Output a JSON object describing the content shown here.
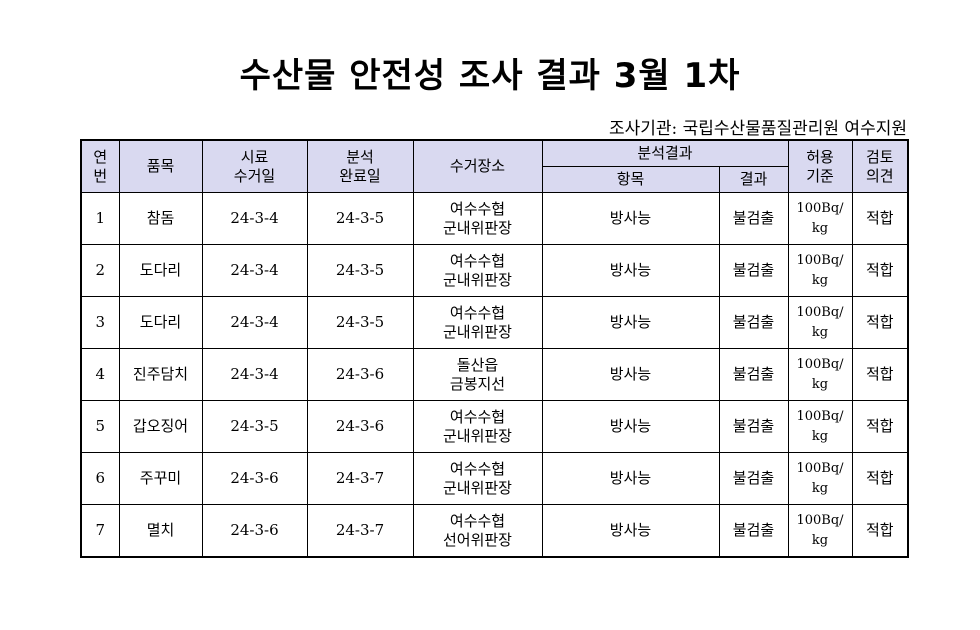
{
  "title": "수산물 안전성 조사 결과 3월 1차",
  "agency": "조사기관: 국립수산물품질관리원 여수지원",
  "headers": {
    "no": "연\n번",
    "item": "품목",
    "collect_date": "시료\n수거일",
    "analysis_date": "분석\n완료일",
    "place": "수거장소",
    "result_group": "분석결과",
    "test": "항목",
    "result": "결과",
    "limit": "허용\n기준",
    "opinion": "검토\n의견"
  },
  "rows": [
    {
      "no": "1",
      "item": "참돔",
      "collect": "24-3-4",
      "done": "24-3-5",
      "place": "여수수협\n군내위판장",
      "test": "방사능",
      "result": "불검출",
      "limit": "100Bq/\nkg",
      "opinion": "적합"
    },
    {
      "no": "2",
      "item": "도다리",
      "collect": "24-3-4",
      "done": "24-3-5",
      "place": "여수수협\n군내위판장",
      "test": "방사능",
      "result": "불검출",
      "limit": "100Bq/\nkg",
      "opinion": "적합"
    },
    {
      "no": "3",
      "item": "도다리",
      "collect": "24-3-4",
      "done": "24-3-5",
      "place": "여수수협\n군내위판장",
      "test": "방사능",
      "result": "불검출",
      "limit": "100Bq/\nkg",
      "opinion": "적합"
    },
    {
      "no": "4",
      "item": "진주담치",
      "collect": "24-3-4",
      "done": "24-3-6",
      "place": "돌산읍\n금봉지선",
      "test": "방사능",
      "result": "불검출",
      "limit": "100Bq/\nkg",
      "opinion": "적합"
    },
    {
      "no": "5",
      "item": "갑오징어",
      "collect": "24-3-5",
      "done": "24-3-6",
      "place": "여수수협\n군내위판장",
      "test": "방사능",
      "result": "불검출",
      "limit": "100Bq/\nkg",
      "opinion": "적합"
    },
    {
      "no": "6",
      "item": "주꾸미",
      "collect": "24-3-6",
      "done": "24-3-7",
      "place": "여수수협\n군내위판장",
      "test": "방사능",
      "result": "불검출",
      "limit": "100Bq/\nkg",
      "opinion": "적합"
    },
    {
      "no": "7",
      "item": "멸치",
      "collect": "24-3-6",
      "done": "24-3-7",
      "place": "여수수협\n선어위판장",
      "test": "방사능",
      "result": "불검출",
      "limit": "100Bq/\nkg",
      "opinion": "적합"
    }
  ],
  "colors": {
    "header_bg": "#d9d9f0"
  }
}
